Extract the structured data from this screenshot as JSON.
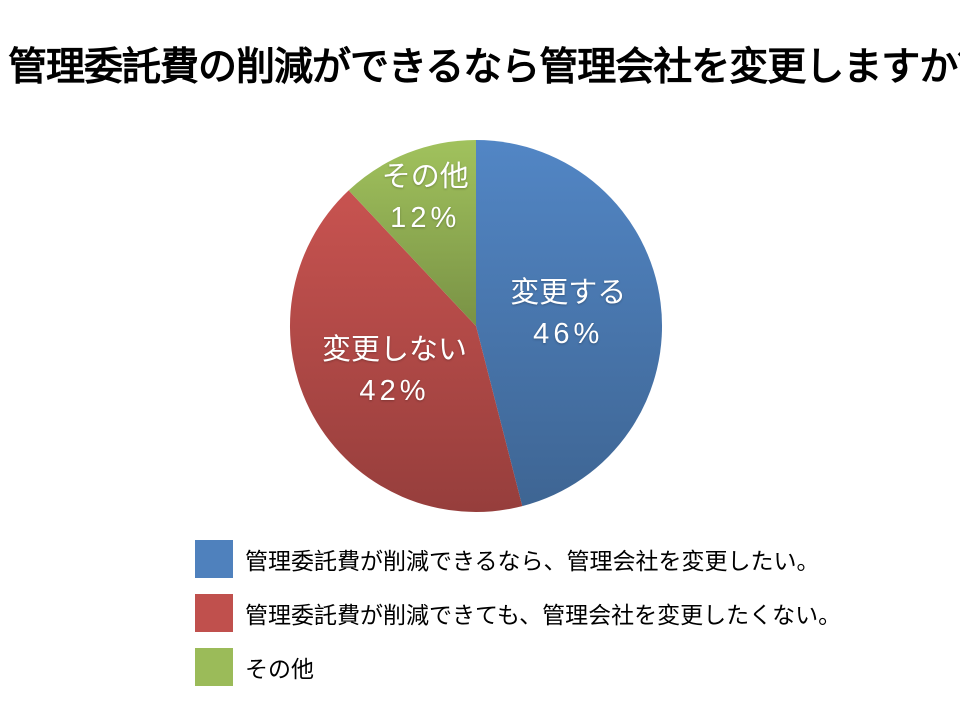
{
  "slide": {
    "title": "管理委託費の削減ができるなら管理会社を変更しますか？"
  },
  "chart_data": {
    "type": "pie",
    "title": "管理委託費の削減ができるなら管理会社を変更しますか？",
    "unit": "%",
    "direction": "clockwise",
    "start_angle": "top",
    "legend_position": "bottom-left",
    "label_color": "#FFFFFF",
    "slices": [
      {
        "label": "変更する",
        "value": 46,
        "pct_label": "46%",
        "color": "#4F81BD",
        "legend_label": "管理委託費が削減できるなら、管理会社を変更したい。"
      },
      {
        "label": "変更しない",
        "value": 42,
        "pct_label": "42%",
        "color": "#C0504D",
        "legend_label": "管理委託費が削減できても、管理会社を変更したくない。"
      },
      {
        "label": "その他",
        "value": 12,
        "pct_label": "12%",
        "color": "#9BBB59",
        "legend_label": "その他"
      }
    ]
  }
}
